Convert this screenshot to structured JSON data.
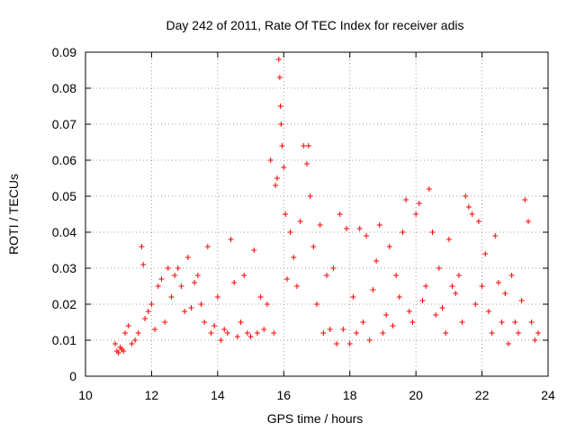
{
  "chart_data": {
    "type": "scatter",
    "title": "Day 242 of 2011, Rate Of TEC Index for receiver adis",
    "xlabel": "GPS time / hours",
    "ylabel": "ROTI / TECUs",
    "xlim": [
      10,
      24
    ],
    "ylim": [
      0,
      0.09
    ],
    "xticks": [
      10,
      12,
      14,
      16,
      18,
      20,
      22,
      24
    ],
    "yticks": [
      0,
      0.01,
      0.02,
      0.03,
      0.04,
      0.05,
      0.06,
      0.07,
      0.08,
      0.09
    ],
    "grid": true,
    "legend": "none",
    "marker": "plus",
    "color": "#ff0000",
    "series": [
      {
        "x": [
          10.9,
          10.95,
          11.0,
          11.05,
          11.1,
          11.15,
          11.2,
          11.3,
          11.4,
          11.5,
          11.6,
          11.7,
          11.75,
          11.8,
          11.9,
          12.0,
          12.1,
          12.2,
          12.3,
          12.4,
          12.5,
          12.6,
          12.7,
          12.8,
          12.9,
          13.0,
          13.1,
          13.2,
          13.3,
          13.4,
          13.5,
          13.6,
          13.7,
          13.8,
          13.9,
          14.0,
          14.1,
          14.2,
          14.3,
          14.4,
          14.5,
          14.6,
          14.7,
          14.8,
          14.9,
          15.0,
          15.1,
          15.2,
          15.3,
          15.4,
          15.5,
          15.6,
          15.7,
          15.75,
          15.8,
          15.85,
          15.88,
          15.9,
          15.92,
          15.95,
          16.0,
          16.05,
          16.1,
          16.2,
          16.3,
          16.4,
          16.5,
          16.6,
          16.7,
          16.75,
          16.8,
          16.9,
          17.0,
          17.1,
          17.2,
          17.3,
          17.4,
          17.5,
          17.6,
          17.7,
          17.8,
          17.9,
          18.0,
          18.1,
          18.2,
          18.3,
          18.4,
          18.5,
          18.6,
          18.7,
          18.8,
          18.9,
          19.0,
          19.1,
          19.2,
          19.3,
          19.4,
          19.5,
          19.6,
          19.7,
          19.8,
          19.9,
          20.0,
          20.1,
          20.2,
          20.3,
          20.4,
          20.5,
          20.6,
          20.7,
          20.8,
          20.9,
          21.0,
          21.1,
          21.2,
          21.3,
          21.4,
          21.5,
          21.6,
          21.7,
          21.8,
          21.9,
          22.0,
          22.1,
          22.2,
          22.3,
          22.4,
          22.5,
          22.6,
          22.7,
          22.8,
          22.9,
          23.0,
          23.1,
          23.2,
          23.3,
          23.4,
          23.5,
          23.6,
          23.7
        ],
        "y": [
          0.009,
          0.007,
          0.0065,
          0.008,
          0.0075,
          0.007,
          0.012,
          0.014,
          0.009,
          0.01,
          0.012,
          0.036,
          0.031,
          0.016,
          0.018,
          0.02,
          0.013,
          0.025,
          0.027,
          0.015,
          0.03,
          0.022,
          0.028,
          0.03,
          0.025,
          0.018,
          0.033,
          0.019,
          0.026,
          0.028,
          0.02,
          0.015,
          0.036,
          0.012,
          0.014,
          0.022,
          0.01,
          0.013,
          0.012,
          0.038,
          0.026,
          0.011,
          0.015,
          0.028,
          0.012,
          0.011,
          0.035,
          0.012,
          0.022,
          0.013,
          0.02,
          0.06,
          0.012,
          0.053,
          0.055,
          0.088,
          0.083,
          0.075,
          0.07,
          0.064,
          0.058,
          0.045,
          0.027,
          0.04,
          0.033,
          0.025,
          0.043,
          0.064,
          0.059,
          0.064,
          0.05,
          0.036,
          0.02,
          0.042,
          0.012,
          0.028,
          0.013,
          0.03,
          0.009,
          0.045,
          0.013,
          0.041,
          0.009,
          0.022,
          0.012,
          0.041,
          0.015,
          0.039,
          0.01,
          0.024,
          0.032,
          0.042,
          0.012,
          0.017,
          0.036,
          0.014,
          0.028,
          0.022,
          0.04,
          0.049,
          0.018,
          0.015,
          0.045,
          0.048,
          0.021,
          0.025,
          0.052,
          0.04,
          0.017,
          0.03,
          0.019,
          0.012,
          0.038,
          0.025,
          0.023,
          0.028,
          0.015,
          0.05,
          0.047,
          0.045,
          0.02,
          0.043,
          0.025,
          0.034,
          0.018,
          0.012,
          0.039,
          0.026,
          0.015,
          0.023,
          0.009,
          0.028,
          0.015,
          0.012,
          0.021,
          0.049,
          0.043,
          0.015,
          0.01,
          0.012
        ]
      }
    ]
  }
}
